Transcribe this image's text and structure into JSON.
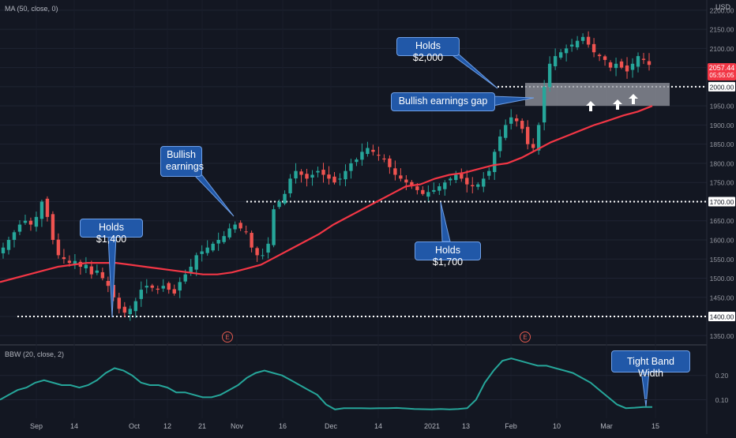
{
  "indicators": {
    "ma_label": "MA (50, close, 0)",
    "bbw_label": "BBW (20, close, 2)",
    "currency": "USD"
  },
  "price_badge": {
    "price": "2057.44",
    "timer": "05:55:05",
    "color": "#f23645"
  },
  "colors": {
    "up": "#26a69a",
    "down": "#ef5350",
    "ma": "#f23645",
    "bbw": "#26a69a",
    "callout_bg": "#2158a8"
  },
  "callouts": {
    "holds_2000": "Holds $2,000",
    "earnings_gap": "Bullish earnings gap",
    "bullish_earnings_1": "Bullish",
    "bullish_earnings_2": "earnings",
    "holds_1400": "Holds $1,400",
    "holds_1700": "Holds $1,700",
    "tight_band": "Tight Band Width"
  },
  "earnings_marker": "E",
  "chart_data": [
    {
      "type": "candlestick",
      "title": "",
      "ylabel": "",
      "ylim": [
        1330,
        2210
      ],
      "yticks": [
        1350,
        1400,
        1450,
        1500,
        1550,
        1600,
        1650,
        1700,
        1750,
        1800,
        1850,
        1900,
        1950,
        2000,
        2050,
        2100,
        2150,
        2200
      ],
      "ytick_labels": [
        "1350.00",
        "1400.00",
        "1450.00",
        "1500.00",
        "1550.00",
        "1600.00",
        "1650.00",
        "1700.00",
        "1750.00",
        "1800.00",
        "1850.00",
        "1900.00",
        "1950.00",
        "2000.00",
        "2050.00",
        "2100.00",
        "2150.00",
        "2200.00"
      ],
      "highlighted_ticks": [
        "1700.00",
        "1400.00",
        "2000.00"
      ],
      "xtick_labels": [
        "Sep",
        "14",
        "Oct",
        "12",
        "21",
        "Nov",
        "16",
        "Dec",
        "14",
        "2021",
        "13",
        "Feb",
        "10",
        "Mar",
        "15"
      ],
      "date_range": [
        "2020-08-25",
        "2021-03-15"
      ],
      "horizontal_levels": [
        1400,
        1700,
        2000
      ],
      "gap_zone": [
        1950,
        2010
      ],
      "closes": [
        1580,
        1600,
        1620,
        1640,
        1650,
        1640,
        1660,
        1700,
        1660,
        1600,
        1560,
        1550,
        1540,
        1545,
        1530,
        1535,
        1510,
        1520,
        1500,
        1480,
        1450,
        1420,
        1410,
        1420,
        1440,
        1470,
        1480,
        1475,
        1470,
        1480,
        1470,
        1460,
        1490,
        1510,
        1530,
        1560,
        1570,
        1580,
        1590,
        1600,
        1610,
        1630,
        1640,
        1630,
        1620,
        1580,
        1560,
        1560,
        1590,
        1680,
        1700,
        1720,
        1760,
        1780,
        1770,
        1760,
        1770,
        1780,
        1770,
        1760,
        1750,
        1760,
        1780,
        1800,
        1810,
        1830,
        1840,
        1830,
        1820,
        1810,
        1790,
        1770,
        1760,
        1750,
        1740,
        1730,
        1720,
        1725,
        1730,
        1740,
        1750,
        1760,
        1770,
        1760,
        1745,
        1740,
        1745,
        1760,
        1780,
        1830,
        1870,
        1900,
        1920,
        1910,
        1890,
        1850,
        1840,
        1900,
        2000,
        2060,
        2080,
        2090,
        2100,
        2110,
        2120,
        2130,
        2110,
        2090,
        2080,
        2070,
        2050,
        2060,
        2050,
        2040,
        2060,
        2080,
        2070,
        2057
      ],
      "ma50": [
        1490,
        1500,
        1510,
        1520,
        1530,
        1535,
        1540,
        1540,
        1540,
        1535,
        1530,
        1525,
        1520,
        1515,
        1510,
        1510,
        1515,
        1525,
        1535,
        1555,
        1575,
        1595,
        1615,
        1640,
        1660,
        1680,
        1700,
        1720,
        1740,
        1745,
        1760,
        1770,
        1775,
        1785,
        1795,
        1800,
        1815,
        1835,
        1855,
        1870,
        1885,
        1900,
        1912,
        1925,
        1935,
        1950
      ],
      "bbw": [
        0.1,
        0.12,
        0.14,
        0.15,
        0.17,
        0.18,
        0.17,
        0.16,
        0.16,
        0.15,
        0.16,
        0.18,
        0.21,
        0.23,
        0.22,
        0.2,
        0.17,
        0.16,
        0.16,
        0.15,
        0.13,
        0.13,
        0.12,
        0.11,
        0.11,
        0.12,
        0.14,
        0.16,
        0.19,
        0.21,
        0.22,
        0.21,
        0.2,
        0.18,
        0.16,
        0.14,
        0.12,
        0.08,
        0.06,
        0.065,
        0.065,
        0.065,
        0.064,
        0.065,
        0.065,
        0.066,
        0.064,
        0.062,
        0.061,
        0.06,
        0.062,
        0.06,
        0.062,
        0.065,
        0.1,
        0.17,
        0.22,
        0.26,
        0.27,
        0.26,
        0.25,
        0.24,
        0.24,
        0.23,
        0.22,
        0.21,
        0.19,
        0.17,
        0.14,
        0.11,
        0.08,
        0.065,
        0.067,
        0.07,
        0.07
      ],
      "bbw_ylim": [
        0.03,
        0.29
      ],
      "bbw_ticks": [
        0.1,
        0.2
      ],
      "bbw_tick_labels": [
        "0.10",
        "0.20"
      ]
    }
  ]
}
